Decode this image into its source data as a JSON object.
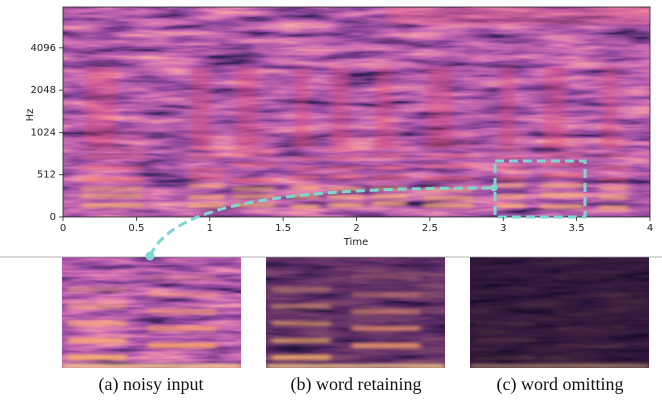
{
  "chart_data": {
    "type": "spectrogram",
    "xlabel": "Time",
    "ylabel": "Hz",
    "xlim": [
      0,
      4
    ],
    "xticks": [
      0,
      0.5,
      1,
      1.5,
      2,
      2.5,
      3,
      3.5,
      4
    ],
    "ylim": [
      0,
      8000
    ],
    "yticks": [
      0,
      512,
      1024,
      2048,
      4096
    ],
    "yscale": "symlog",
    "linthresh": 512
  },
  "panels": [
    {
      "caption": "(a) noisy input"
    },
    {
      "caption": "(b) word retaining"
    },
    {
      "caption": "(c) word omitting"
    }
  ]
}
